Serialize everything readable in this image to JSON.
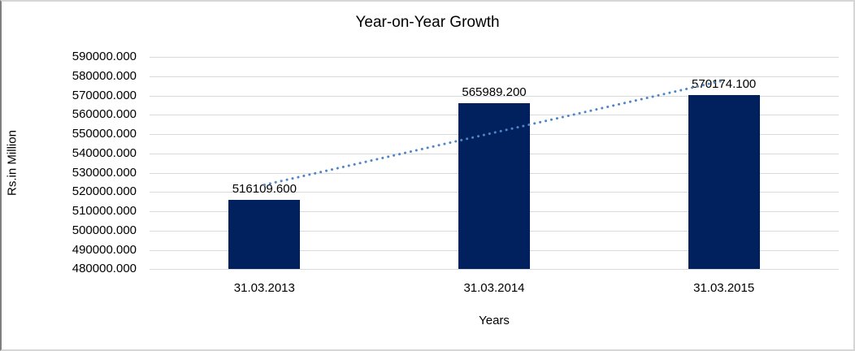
{
  "chart_data": {
    "type": "bar",
    "title": "Year-on-Year Growth",
    "xlabel": "Years",
    "ylabel": "Rs.in Million",
    "categories": [
      "31.03.2013",
      "31.03.2014",
      "31.03.2015"
    ],
    "values": [
      516109.6,
      565989.2,
      570174.1
    ],
    "data_labels": [
      "516109.600",
      "565989.200",
      "570174.100"
    ],
    "y_ticks": [
      "590000.000",
      "580000.000",
      "570000.000",
      "560000.000",
      "550000.000",
      "540000.000",
      "530000.000",
      "520000.000",
      "510000.000",
      "500000.000",
      "490000.000",
      "480000.000"
    ],
    "ylim": [
      480000,
      590000
    ],
    "y_step": 10000,
    "grid": true,
    "legend_position": "none",
    "colors": {
      "bar": "#00215e",
      "trendline": "#4e86c8",
      "gridline": "#d9d9d9",
      "text": "#000000",
      "frame": "#d6d6d6"
    },
    "trendline": {
      "type": "linear",
      "style": "dotted"
    }
  }
}
